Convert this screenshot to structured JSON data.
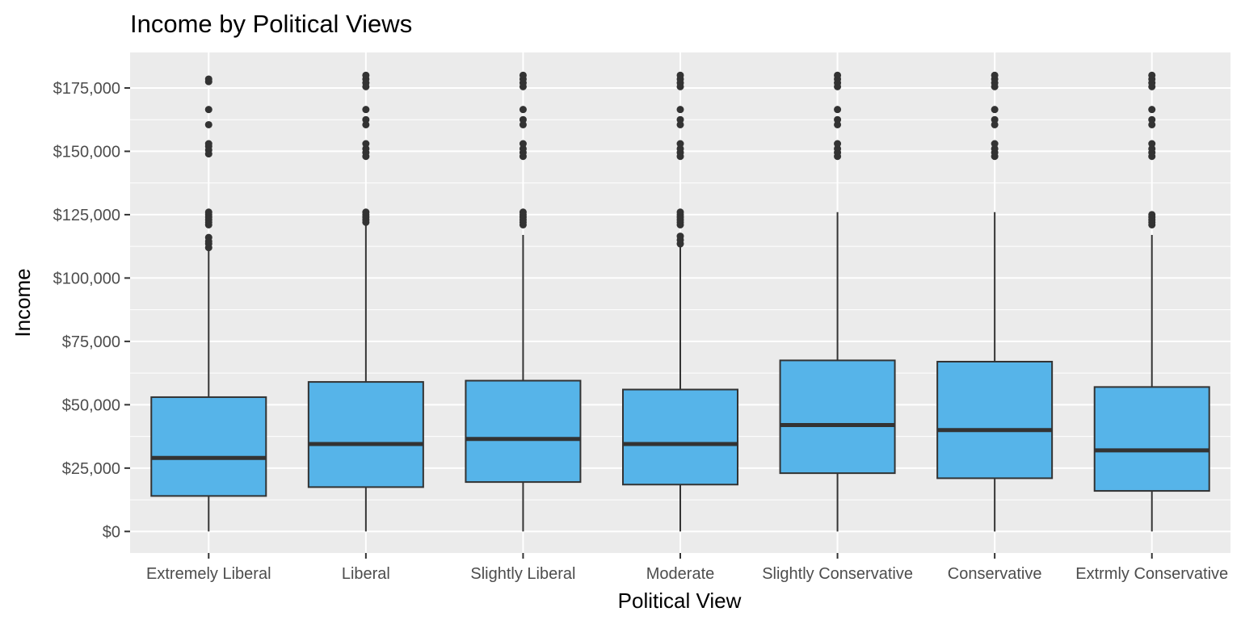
{
  "chart_data": {
    "type": "boxplot",
    "title": "Income by Political Views",
    "xlabel": "Political View",
    "ylabel": "Income",
    "ylim": [
      -8500,
      189000
    ],
    "y_ticks": [
      0,
      25000,
      50000,
      75000,
      100000,
      125000,
      150000,
      175000
    ],
    "y_tick_labels": [
      "$0",
      "$25,000",
      "$50,000",
      "$75,000",
      "$100,000",
      "$125,000",
      "$150,000",
      "$175,000"
    ],
    "grid": true,
    "colors": {
      "panel": "#ebebeb",
      "grid": "#ffffff",
      "box_fill": "#56b4e9",
      "box_line": "#333333"
    },
    "categories": [
      "Extremely Liberal",
      "Liberal",
      "Slightly Liberal",
      "Moderate",
      "Slightly Conservative",
      "Conservative",
      "Extrmly Conservative"
    ],
    "boxes": [
      {
        "category": "Extremely Liberal",
        "min": 0,
        "q1": 14000,
        "median": 29000,
        "q3": 53000,
        "whisker_high": 111000,
        "outliers": [
          112000,
          113500,
          114500,
          116000,
          121000,
          122000,
          123000,
          124000,
          125000,
          126000,
          149000,
          150500,
          152000,
          153000,
          160500,
          166500,
          177500,
          178500
        ]
      },
      {
        "category": "Liberal",
        "min": 0,
        "q1": 17500,
        "median": 34500,
        "q3": 59000,
        "whisker_high": 121000,
        "outliers": [
          122000,
          123000,
          124000,
          125000,
          126000,
          148000,
          149500,
          151000,
          153000,
          160500,
          162500,
          166500,
          175500,
          177000,
          178500,
          180000
        ]
      },
      {
        "category": "Slightly Liberal",
        "min": 0,
        "q1": 19500,
        "median": 36500,
        "q3": 59500,
        "whisker_high": 117000,
        "outliers": [
          121000,
          122000,
          123000,
          124000,
          125000,
          126000,
          148000,
          149500,
          151000,
          153000,
          160500,
          162500,
          166500,
          175500,
          177000,
          178500,
          180000
        ]
      },
      {
        "category": "Moderate",
        "min": 0,
        "q1": 18500,
        "median": 34500,
        "q3": 56000,
        "whisker_high": 112500,
        "outliers": [
          113500,
          115000,
          116500,
          121000,
          122000,
          123000,
          124000,
          125000,
          126000,
          148000,
          149500,
          151000,
          153000,
          160500,
          162500,
          166500,
          175500,
          177000,
          178500,
          180000
        ]
      },
      {
        "category": "Slightly Conservative",
        "min": 0,
        "q1": 23000,
        "median": 42000,
        "q3": 67500,
        "whisker_high": 126000,
        "outliers": [
          148000,
          149500,
          151000,
          153000,
          160500,
          162500,
          166500,
          175500,
          177000,
          178500,
          180000
        ]
      },
      {
        "category": "Conservative",
        "min": 0,
        "q1": 21000,
        "median": 40000,
        "q3": 67000,
        "whisker_high": 126000,
        "outliers": [
          148000,
          149500,
          151000,
          153000,
          160500,
          162500,
          166500,
          175500,
          177000,
          178500,
          180000
        ]
      },
      {
        "category": "Extrmly Conservative",
        "min": 0,
        "q1": 16000,
        "median": 32000,
        "q3": 57000,
        "whisker_high": 117000,
        "outliers": [
          121000,
          122000,
          123000,
          124000,
          125000,
          148000,
          149500,
          151000,
          153000,
          160500,
          162500,
          166500,
          175500,
          177000,
          178500,
          180000
        ]
      }
    ]
  }
}
